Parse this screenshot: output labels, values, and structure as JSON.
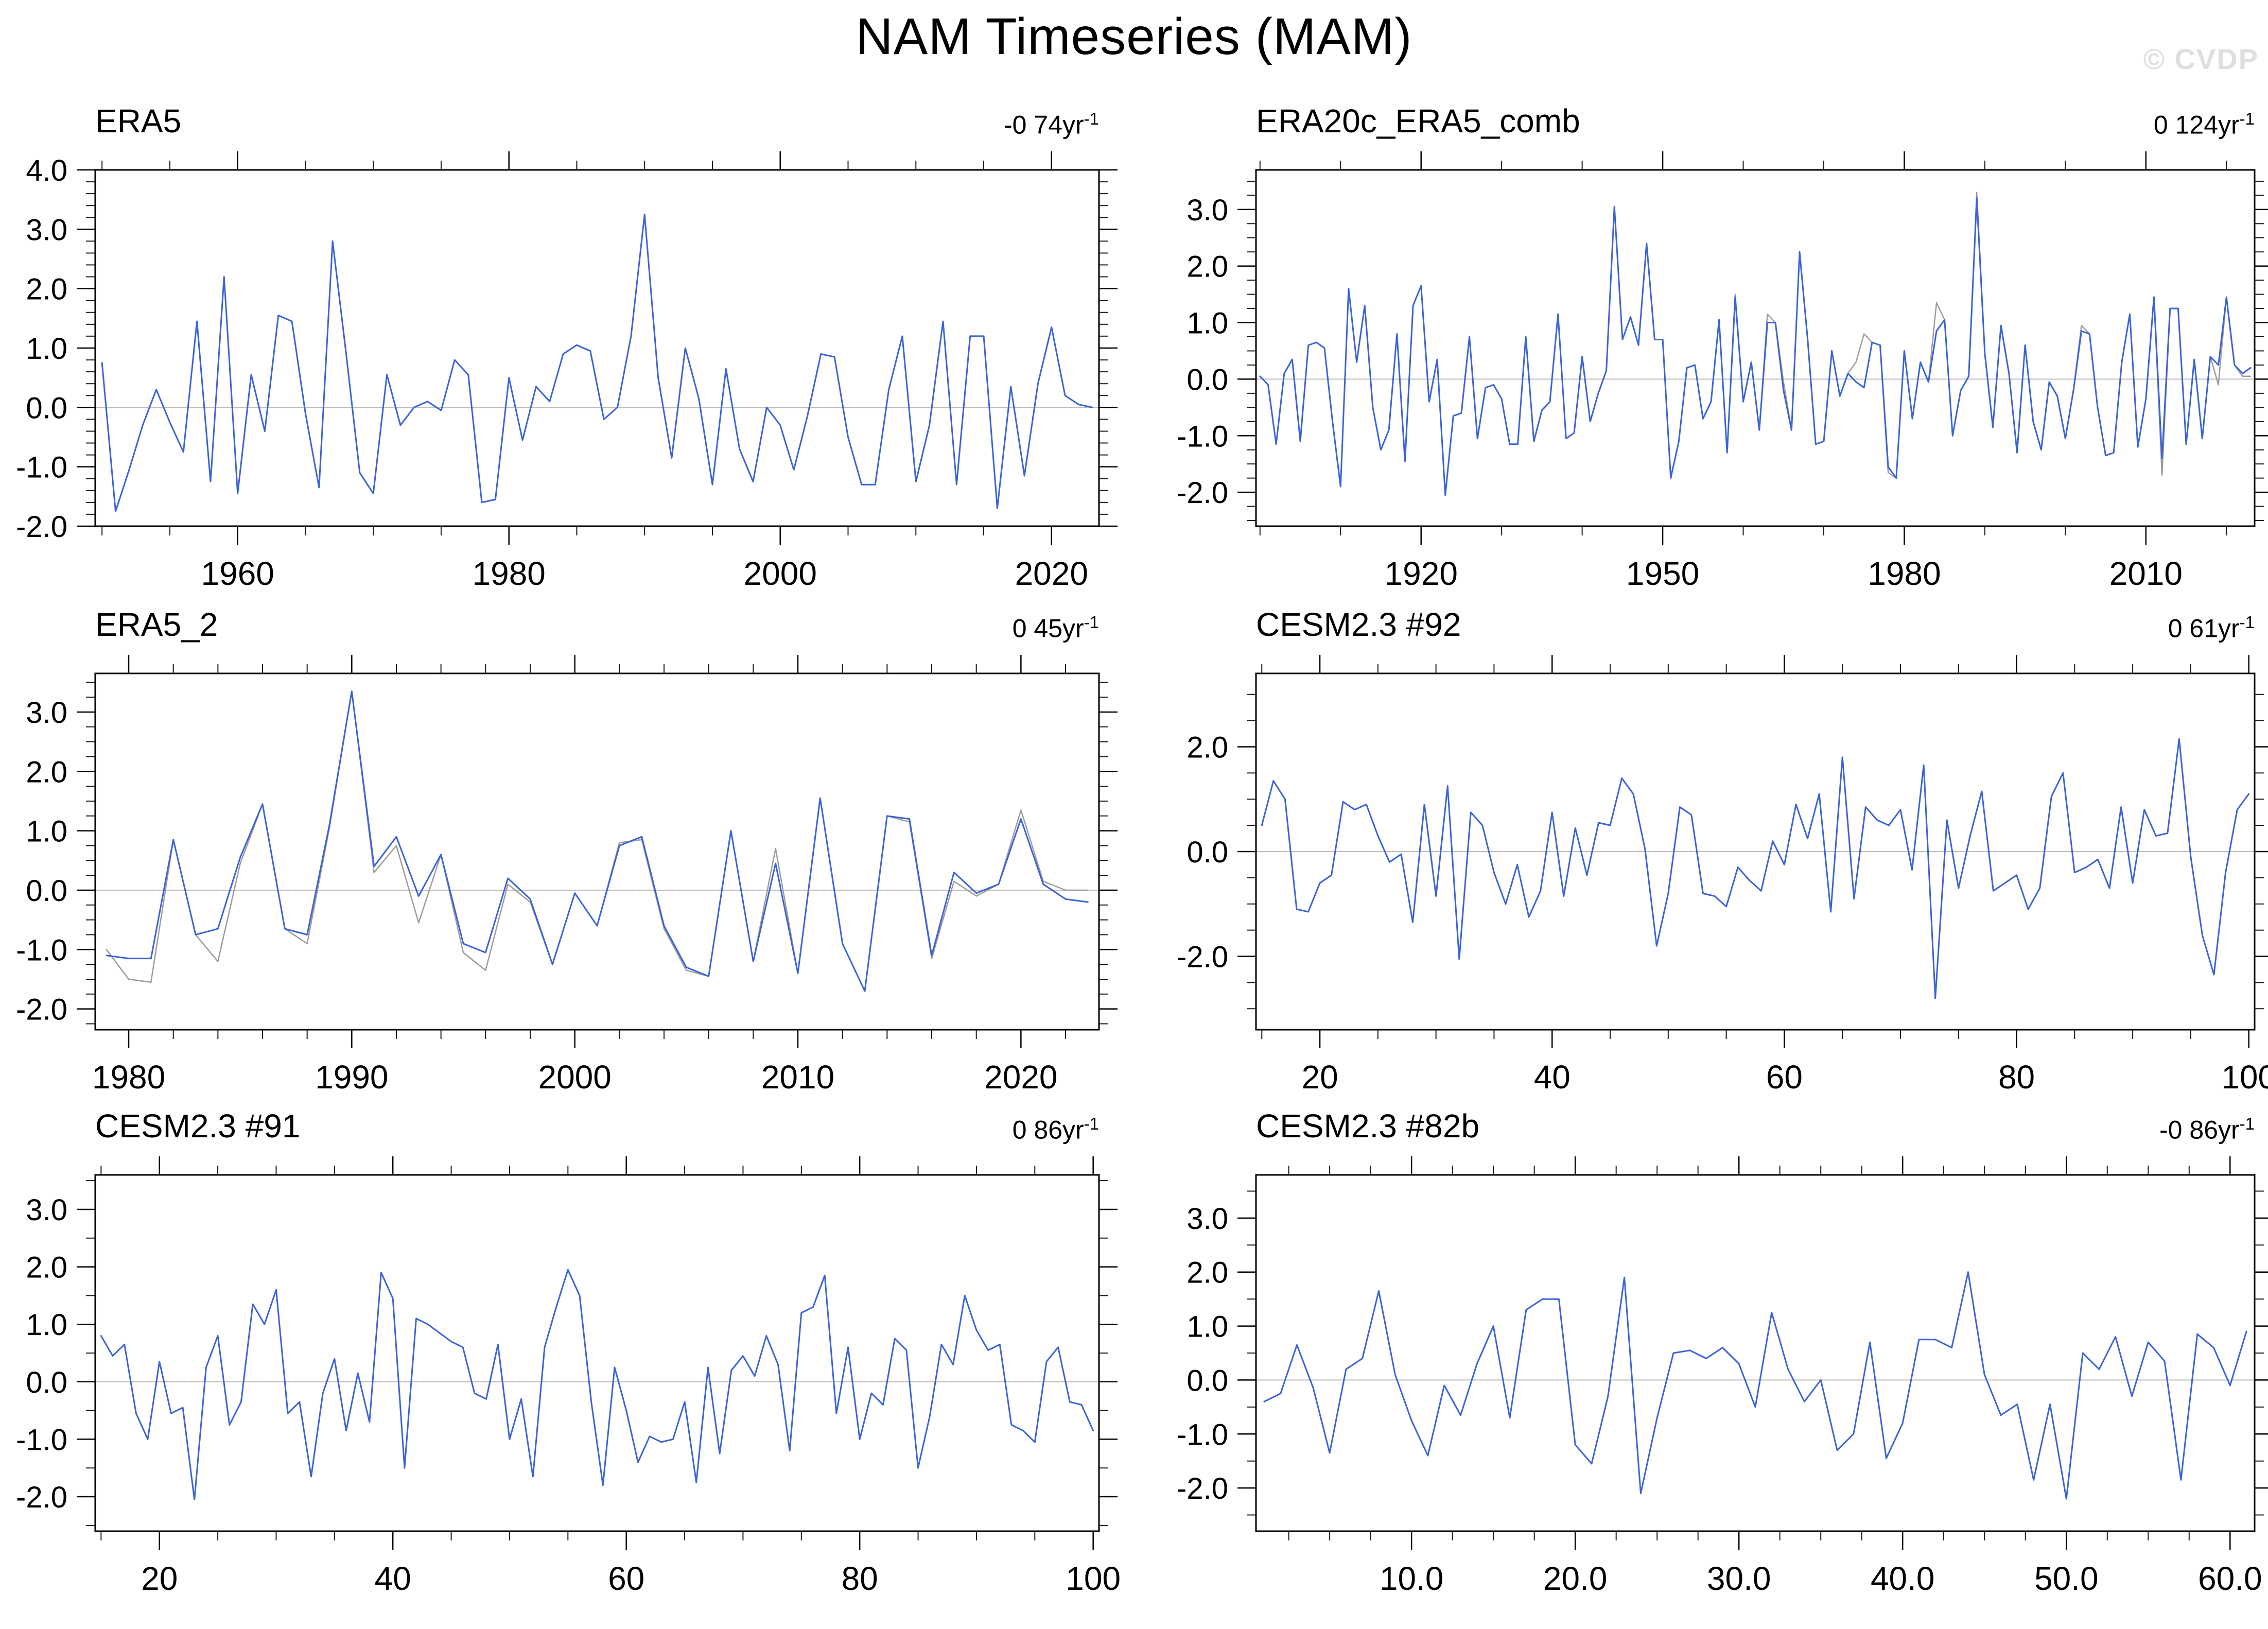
{
  "page": {
    "title": "NAM Timeseries (MAM)",
    "watermark": "© CVDP"
  },
  "colors": {
    "line_primary": "#3b63d8",
    "line_secondary": "#9b9b9b",
    "zero_line": "#bcbcbc",
    "frame": "#000000",
    "tick": "#1a1a1a",
    "watermark": "#dfdfdf"
  },
  "chart_data": [
    {
      "type": "line",
      "title": "ERA5",
      "trend_text": "-0 74yr",
      "trend_sup": "-1",
      "x_axis": {
        "min": 1949.5,
        "max": 2023.5,
        "majors": [
          1960,
          1980,
          2000,
          2020
        ],
        "labels": [
          "1960",
          "1980",
          "2000",
          "2020"
        ],
        "minor_step": 5
      },
      "y_axis": {
        "min": -2.0,
        "max": 4.0,
        "majors": [
          -2,
          -1,
          0,
          1,
          2,
          3,
          4
        ],
        "labels": [
          "-2.0",
          "-1.0",
          "0.0",
          "1.0",
          "2.0",
          "3.0",
          "4.0"
        ],
        "minor_step": 0.2
      },
      "series": [
        {
          "name": "blue_line",
          "color": "primary",
          "width": 3,
          "x_start": 1950,
          "x_step": 1,
          "values": [
            0.75,
            -1.75,
            -1.05,
            -0.3,
            0.3,
            -0.25,
            -0.75,
            1.45,
            -1.25,
            2.2,
            -1.45,
            0.55,
            -0.4,
            1.55,
            1.45,
            -0.1,
            -1.35,
            2.8,
            0.9,
            -1.1,
            -1.45,
            0.55,
            -0.3,
            0.0,
            0.1,
            -0.05,
            0.8,
            0.55,
            -1.6,
            -1.55,
            0.5,
            -0.55,
            0.35,
            0.1,
            0.9,
            1.05,
            0.95,
            -0.2,
            0.0,
            1.2,
            3.25,
            0.5,
            -0.85,
            1.0,
            0.15,
            -1.3,
            0.65,
            -0.7,
            -1.25,
            0.0,
            -0.3,
            -1.05,
            -0.15,
            0.9,
            0.85,
            -0.5,
            -1.3,
            -1.3,
            0.3,
            1.2,
            -1.25,
            -0.3,
            1.45,
            -1.3,
            1.2,
            1.2,
            -1.7,
            0.35,
            -1.15,
            0.4,
            1.35,
            0.2,
            0.05,
            0.0
          ]
        }
      ]
    },
    {
      "type": "line",
      "title": "ERA20c_ERA5_comb",
      "trend_text": "0 124yr",
      "trend_sup": "-1",
      "x_axis": {
        "min": 1899.5,
        "max": 2023.5,
        "majors": [
          1920,
          1950,
          1980,
          2010
        ],
        "labels": [
          "1920",
          "1950",
          "1980",
          "2010"
        ],
        "minor_step": 10
      },
      "y_axis": {
        "min": -2.6,
        "max": 3.7,
        "majors": [
          -2,
          -1,
          0,
          1,
          2,
          3
        ],
        "labels": [
          "-2.0",
          "-1.0",
          "0.0",
          "1.0",
          "2.0",
          "3.0"
        ],
        "minor_step": 0.25
      },
      "series": [
        {
          "name": "gray_line",
          "color": "secondary",
          "width": 2.5,
          "x_start": 1950,
          "x_step": 1,
          "values": [
            0.7,
            -1.75,
            -1.1,
            0.2,
            0.25,
            -0.7,
            -0.4,
            1.05,
            -1.3,
            1.5,
            -0.4,
            0.3,
            -0.9,
            1.15,
            1.0,
            -0.05,
            -0.9,
            2.25,
            0.7,
            -1.15,
            -1.1,
            0.5,
            -0.3,
            0.1,
            0.3,
            0.8,
            0.65,
            0.6,
            -1.65,
            -1.75,
            0.5,
            -0.7,
            0.3,
            -0.05,
            1.35,
            1.05,
            -1.0,
            -0.2,
            0.05,
            3.3,
            0.45,
            -0.85,
            0.95,
            0.1,
            -1.3,
            0.6,
            -0.75,
            -1.25,
            -0.05,
            -0.3,
            -1.05,
            -0.2,
            0.95,
            0.8,
            -0.5,
            -1.35,
            -1.3,
            0.3,
            1.15,
            -1.2,
            -0.35,
            1.45,
            -1.7,
            1.25,
            1.25,
            -1.15,
            0.35,
            -1.05,
            0.4,
            -0.1,
            1.45,
            0.25,
            0.05,
            0.05
          ]
        },
        {
          "name": "blue_line",
          "color": "primary",
          "width": 3,
          "x_start": 1900,
          "x_step": 1,
          "values": [
            0.05,
            -0.1,
            -1.15,
            0.1,
            0.35,
            -1.1,
            0.6,
            0.65,
            0.55,
            -0.75,
            -1.9,
            1.6,
            0.3,
            1.3,
            -0.5,
            -1.25,
            -0.9,
            0.8,
            -1.45,
            1.3,
            1.65,
            -0.4,
            0.35,
            -2.05,
            -0.65,
            -0.6,
            0.75,
            -1.05,
            -0.15,
            -0.1,
            -0.35,
            -1.15,
            -1.15,
            0.75,
            -1.1,
            -0.55,
            -0.4,
            1.15,
            -1.05,
            -0.95,
            0.4,
            -0.75,
            -0.25,
            0.15,
            3.05,
            0.7,
            1.1,
            0.6,
            2.4,
            0.7,
            0.7,
            -1.75,
            -1.1,
            0.2,
            0.25,
            -0.7,
            -0.4,
            1.05,
            -1.3,
            1.45,
            -0.4,
            0.3,
            -0.9,
            1.0,
            1.0,
            -0.2,
            -0.9,
            2.25,
            0.7,
            -1.15,
            -1.1,
            0.5,
            -0.3,
            0.1,
            -0.05,
            -0.15,
            0.65,
            0.6,
            -1.55,
            -1.75,
            0.5,
            -0.7,
            0.3,
            -0.05,
            0.85,
            1.05,
            -1.0,
            -0.2,
            0.05,
            3.2,
            0.45,
            -0.85,
            0.95,
            0.1,
            -1.3,
            0.6,
            -0.75,
            -1.25,
            -0.05,
            -0.3,
            -1.05,
            -0.2,
            0.85,
            0.8,
            -0.5,
            -1.35,
            -1.3,
            0.3,
            1.15,
            -1.2,
            -0.35,
            1.45,
            -1.4,
            1.25,
            1.25,
            -1.15,
            0.35,
            -1.05,
            0.4,
            0.25,
            1.45,
            0.25,
            0.1,
            0.2
          ]
        }
      ]
    },
    {
      "type": "line",
      "title": "ERA5_2",
      "trend_text": "0 45yr",
      "trend_sup": "-1",
      "x_axis": {
        "min": 1978.5,
        "max": 2023.5,
        "majors": [
          1980,
          1990,
          2000,
          2010,
          2020
        ],
        "labels": [
          "1980",
          "1990",
          "2000",
          "2010",
          "2020"
        ],
        "minor_step": 2
      },
      "y_axis": {
        "min": -2.35,
        "max": 3.65,
        "majors": [
          -2,
          -1,
          0,
          1,
          2,
          3
        ],
        "labels": [
          "-2.0",
          "-1.0",
          "0.0",
          "1.0",
          "2.0",
          "3.0"
        ],
        "minor_step": 0.25
      },
      "series": [
        {
          "name": "gray_line",
          "color": "secondary",
          "width": 2.5,
          "x_start": 1979,
          "x_step": 1,
          "values": [
            -1.0,
            -1.5,
            -1.55,
            0.85,
            -0.75,
            -1.2,
            0.45,
            1.45,
            -0.65,
            -0.9,
            1.05,
            3.35,
            0.3,
            0.75,
            -0.55,
            0.6,
            -1.05,
            -1.35,
            0.1,
            -0.2,
            -1.25,
            -0.05,
            -0.6,
            0.8,
            0.85,
            -0.65,
            -1.35,
            -1.45,
            1.0,
            -1.2,
            0.7,
            -1.4,
            1.55,
            -0.9,
            -1.7,
            1.25,
            1.15,
            -1.15,
            0.15,
            -0.1,
            0.1,
            1.35,
            0.15,
            0.0,
            0.0
          ]
        },
        {
          "name": "blue_line",
          "color": "primary",
          "width": 3,
          "x_start": 1979,
          "x_step": 1,
          "values": [
            -1.1,
            -1.15,
            -1.15,
            0.85,
            -0.75,
            -0.65,
            0.55,
            1.45,
            -0.65,
            -0.75,
            1.1,
            3.35,
            0.4,
            0.9,
            -0.1,
            0.6,
            -0.9,
            -1.05,
            0.2,
            -0.15,
            -1.25,
            -0.05,
            -0.6,
            0.75,
            0.9,
            -0.6,
            -1.3,
            -1.45,
            1.0,
            -1.2,
            0.45,
            -1.4,
            1.55,
            -0.9,
            -1.7,
            1.25,
            1.2,
            -1.1,
            0.3,
            -0.05,
            0.1,
            1.2,
            0.1,
            -0.15,
            -0.2
          ]
        }
      ]
    },
    {
      "type": "line",
      "title": "CESM2.3 #92",
      "trend_text": "0 61yr",
      "trend_sup": "-1",
      "x_axis": {
        "min": 14.5,
        "max": 100.5,
        "majors": [
          20,
          40,
          60,
          80,
          100
        ],
        "labels": [
          "20",
          "40",
          "60",
          "80",
          "100"
        ],
        "minor_step": 5
      },
      "y_axis": {
        "min": -3.4,
        "max": 3.4,
        "majors": [
          -2,
          0,
          2
        ],
        "labels": [
          "-2.0",
          "0.0",
          "2.0"
        ],
        "minor_step": 0.5
      },
      "series": [
        {
          "name": "blue_line",
          "color": "primary",
          "width": 3,
          "x_start": 15,
          "x_step": 1,
          "values": [
            0.5,
            1.35,
            1.0,
            -1.1,
            -1.15,
            -0.6,
            -0.45,
            0.95,
            0.8,
            0.9,
            0.3,
            -0.2,
            -0.05,
            -1.35,
            0.9,
            -0.85,
            1.25,
            -2.05,
            0.75,
            0.5,
            -0.4,
            -1.0,
            -0.25,
            -1.25,
            -0.75,
            0.75,
            -0.85,
            0.45,
            -0.45,
            0.55,
            0.5,
            1.4,
            1.1,
            0.05,
            -1.8,
            -0.8,
            0.85,
            0.7,
            -0.8,
            -0.85,
            -1.05,
            -0.3,
            -0.55,
            -0.75,
            0.2,
            -0.25,
            0.9,
            0.25,
            1.1,
            -1.15,
            1.8,
            -0.9,
            0.85,
            0.6,
            0.5,
            0.8,
            -0.35,
            1.65,
            -2.8,
            0.6,
            -0.7,
            0.3,
            1.15,
            -0.75,
            -0.6,
            -0.45,
            -1.1,
            -0.7,
            1.05,
            1.5,
            -0.4,
            -0.3,
            -0.15,
            -0.7,
            0.85,
            -0.6,
            0.8,
            0.3,
            0.35,
            2.15,
            -0.1,
            -1.6,
            -2.35,
            -0.4,
            0.8,
            1.1
          ]
        }
      ]
    },
    {
      "type": "line",
      "title": "CESM2.3 #91",
      "trend_text": "0 86yr",
      "trend_sup": "-1",
      "x_axis": {
        "min": 14.5,
        "max": 100.5,
        "majors": [
          20,
          40,
          60,
          80,
          100
        ],
        "labels": [
          "20",
          "40",
          "60",
          "80",
          "100"
        ],
        "minor_step": 5
      },
      "y_axis": {
        "min": -2.6,
        "max": 3.6,
        "majors": [
          -2,
          -1,
          0,
          1,
          2,
          3
        ],
        "labels": [
          "-2.0",
          "-1.0",
          "0.0",
          "1.0",
          "2.0",
          "3.0"
        ],
        "minor_step": 0.5
      },
      "series": [
        {
          "name": "blue_line",
          "color": "primary",
          "width": 3,
          "x_start": 15,
          "x_step": 1,
          "values": [
            0.8,
            0.45,
            0.65,
            -0.55,
            -1.0,
            0.35,
            -0.55,
            -0.45,
            -2.05,
            0.25,
            0.8,
            -0.75,
            -0.35,
            1.35,
            1.0,
            1.6,
            -0.55,
            -0.35,
            -1.65,
            -0.2,
            0.4,
            -0.85,
            0.15,
            -0.7,
            1.9,
            1.45,
            -1.5,
            1.1,
            1.0,
            0.85,
            0.7,
            0.6,
            -0.2,
            -0.3,
            0.65,
            -1.0,
            -0.3,
            -1.65,
            0.6,
            1.3,
            1.95,
            1.5,
            -0.35,
            -1.8,
            0.25,
            -0.5,
            -1.4,
            -0.95,
            -1.05,
            -1.0,
            -0.35,
            -1.75,
            0.25,
            -1.25,
            0.2,
            0.45,
            0.1,
            0.8,
            0.3,
            -1.2,
            1.2,
            1.3,
            1.85,
            -0.55,
            0.6,
            -1.0,
            -0.2,
            -0.4,
            0.75,
            0.55,
            -1.5,
            -0.6,
            0.65,
            0.3,
            1.5,
            0.9,
            0.55,
            0.65,
            -0.75,
            -0.85,
            -1.05,
            0.35,
            0.6,
            -0.35,
            -0.4,
            -0.85
          ]
        }
      ]
    },
    {
      "type": "line",
      "title": "CESM2.3 #82b",
      "trend_text": "-0 86yr",
      "trend_sup": "-1",
      "x_axis": {
        "min": 0.5,
        "max": 61.5,
        "majors": [
          10,
          20,
          30,
          40,
          50,
          60
        ],
        "labels": [
          "10.0",
          "20.0",
          "30.0",
          "40.0",
          "50.0",
          "60.0"
        ],
        "minor_step": 2.5
      },
      "y_axis": {
        "min": -2.8,
        "max": 3.8,
        "majors": [
          -2,
          -1,
          0,
          1,
          2,
          3
        ],
        "labels": [
          "-2.0",
          "-1.0",
          "0.0",
          "1.0",
          "2.0",
          "3.0"
        ],
        "minor_step": 0.5
      },
      "series": [
        {
          "name": "blue_line",
          "color": "primary",
          "width": 3,
          "x_start": 1,
          "x_step": 1,
          "values": [
            -0.4,
            -0.25,
            0.65,
            -0.15,
            -1.35,
            0.2,
            0.4,
            1.65,
            0.1,
            -0.75,
            -1.4,
            -0.1,
            -0.65,
            0.3,
            1.0,
            -0.7,
            1.3,
            1.5,
            1.5,
            -1.2,
            -1.55,
            -0.3,
            1.9,
            -2.1,
            -0.7,
            0.5,
            0.55,
            0.4,
            0.6,
            0.3,
            -0.5,
            1.25,
            0.2,
            -0.4,
            0.0,
            -1.3,
            -1.0,
            0.7,
            -1.45,
            -0.8,
            0.75,
            0.75,
            0.6,
            2.0,
            0.1,
            -0.65,
            -0.45,
            -1.85,
            -0.45,
            -2.2,
            0.5,
            0.2,
            0.8,
            -0.3,
            0.7,
            0.35,
            -1.85,
            0.85,
            0.6,
            -0.1,
            0.9
          ]
        }
      ]
    }
  ]
}
